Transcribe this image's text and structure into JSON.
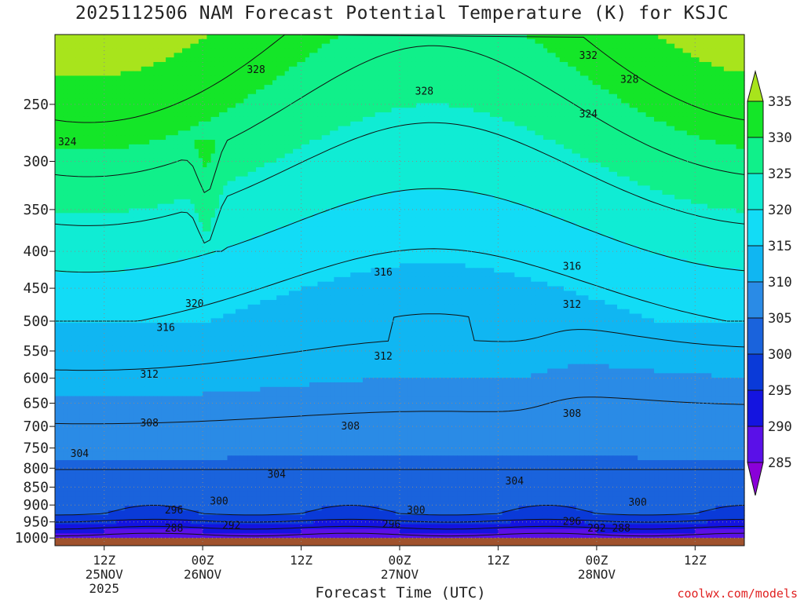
{
  "title": "2025112506 NAM Forecast Potential Temperature (K) for KSJC",
  "xlabel": "Forecast Time (UTC)",
  "credit": "coolwx.com/models",
  "chart_data": {
    "type": "heatmap",
    "title": "2025112506 NAM Forecast Potential Temperature (K) for KSJC",
    "xlabel": "Forecast Time (UTC)",
    "ylabel": "",
    "units": "K",
    "y_axis": {
      "scale": "pressure (inverted)",
      "ticks": [
        250,
        300,
        350,
        400,
        450,
        500,
        550,
        600,
        650,
        700,
        750,
        800,
        850,
        900,
        950,
        1000
      ],
      "range": [
        200,
        1025
      ]
    },
    "x_axis": {
      "range_hours": [
        0,
        84
      ],
      "ticks": [
        {
          "hour": 6,
          "lines": [
            "12Z",
            "25NOV",
            "2025"
          ]
        },
        {
          "hour": 18,
          "lines": [
            "00Z",
            "26NOV"
          ]
        },
        {
          "hour": 30,
          "lines": [
            "12Z"
          ]
        },
        {
          "hour": 42,
          "lines": [
            "00Z",
            "27NOV"
          ]
        },
        {
          "hour": 54,
          "lines": [
            "12Z"
          ]
        },
        {
          "hour": 66,
          "lines": [
            "00Z",
            "28NOV"
          ]
        },
        {
          "hour": 78,
          "lines": [
            "12Z"
          ]
        }
      ]
    },
    "colorbar": {
      "levels": [
        285,
        290,
        295,
        300,
        305,
        310,
        315,
        320,
        325,
        330,
        335
      ],
      "ticks": [
        335,
        330,
        325,
        320,
        315,
        310,
        305,
        300,
        295,
        290,
        285
      ],
      "extend": "both",
      "colors": [
        "#8a00d8",
        "#5a10e8",
        "#1414e0",
        "#0a3ad8",
        "#1a63dc",
        "#2a8be6",
        "#10b6f2",
        "#12dcf6",
        "#10ecd4",
        "#10f08a",
        "#14e628",
        "#a8e41c"
      ]
    },
    "surface_color": "#a0522d",
    "contour_interval_K": 4,
    "contour_labels": [
      {
        "value": 328,
        "hour": 24.5,
        "p": 224
      },
      {
        "value": 324,
        "hour": 1.5,
        "p": 282
      },
      {
        "value": 332,
        "hour": 65,
        "p": 214
      },
      {
        "value": 328,
        "hour": 45,
        "p": 240
      },
      {
        "value": 328,
        "hour": 70,
        "p": 231
      },
      {
        "value": 324,
        "hour": 65,
        "p": 258
      },
      {
        "value": 320,
        "hour": 17,
        "p": 473
      },
      {
        "value": 316,
        "hour": 13.5,
        "p": 511
      },
      {
        "value": 316,
        "hour": 40,
        "p": 428
      },
      {
        "value": 316,
        "hour": 63,
        "p": 420
      },
      {
        "value": 312,
        "hour": 40,
        "p": 560
      },
      {
        "value": 312,
        "hour": 11.5,
        "p": 593
      },
      {
        "value": 312,
        "hour": 63,
        "p": 474
      },
      {
        "value": 308,
        "hour": 11.5,
        "p": 693
      },
      {
        "value": 308,
        "hour": 36,
        "p": 700
      },
      {
        "value": 308,
        "hour": 63,
        "p": 672
      },
      {
        "value": 304,
        "hour": 3,
        "p": 764
      },
      {
        "value": 304,
        "hour": 27,
        "p": 817
      },
      {
        "value": 304,
        "hour": 56,
        "p": 834
      },
      {
        "value": 300,
        "hour": 20,
        "p": 889
      },
      {
        "value": 300,
        "hour": 44,
        "p": 915
      },
      {
        "value": 300,
        "hour": 71,
        "p": 893
      },
      {
        "value": 296,
        "hour": 14.5,
        "p": 915
      },
      {
        "value": 296,
        "hour": 41,
        "p": 958
      },
      {
        "value": 296,
        "hour": 63,
        "p": 950
      },
      {
        "value": 292,
        "hour": 21.5,
        "p": 962
      },
      {
        "value": 292,
        "hour": 66,
        "p": 970
      },
      {
        "value": 288,
        "hour": 14.5,
        "p": 970
      },
      {
        "value": 288,
        "hour": 69,
        "p": 970
      }
    ]
  }
}
